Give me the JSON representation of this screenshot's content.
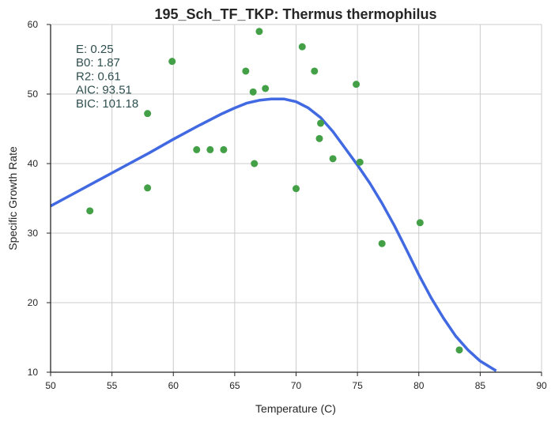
{
  "chart_data": {
    "type": "scatter",
    "title": "195_Sch_TF_TKP: Thermus thermophilus",
    "xlabel": "Temperature (C)",
    "ylabel": "Specific Growth Rate",
    "xlim": [
      50,
      90
    ],
    "ylim": [
      10,
      60
    ],
    "xticks": [
      "50",
      "55",
      "60",
      "65",
      "70",
      "75",
      "80",
      "85",
      "90"
    ],
    "yticks": [
      "10",
      "20",
      "30",
      "40",
      "50",
      "60"
    ],
    "grid": true,
    "colors": {
      "points": "#43a047",
      "curve": "#4169e1"
    },
    "points": [
      [
        53.2,
        33.2
      ],
      [
        57.9,
        47.2
      ],
      [
        57.9,
        36.5
      ],
      [
        59.9,
        54.7
      ],
      [
        61.9,
        42.0
      ],
      [
        63.0,
        42.0
      ],
      [
        64.1,
        42.0
      ],
      [
        65.9,
        53.3
      ],
      [
        66.5,
        50.3
      ],
      [
        66.6,
        40.0
      ],
      [
        67.0,
        59.0
      ],
      [
        67.5,
        50.8
      ],
      [
        70.0,
        36.4
      ],
      [
        70.5,
        56.8
      ],
      [
        71.5,
        53.3
      ],
      [
        71.9,
        43.6
      ],
      [
        72.0,
        45.8
      ],
      [
        73.0,
        40.7
      ],
      [
        74.9,
        51.4
      ],
      [
        75.2,
        40.2
      ],
      [
        77.0,
        28.5
      ],
      [
        80.1,
        31.5
      ],
      [
        83.3,
        13.2
      ]
    ],
    "fit_curve": [
      [
        50,
        33.9
      ],
      [
        52,
        35.8
      ],
      [
        54,
        37.7
      ],
      [
        56,
        39.6
      ],
      [
        58,
        41.5
      ],
      [
        60,
        43.5
      ],
      [
        62,
        45.4
      ],
      [
        64,
        47.2
      ],
      [
        65,
        48.0
      ],
      [
        66,
        48.7
      ],
      [
        67,
        49.1
      ],
      [
        68,
        49.3
      ],
      [
        69,
        49.3
      ],
      [
        70,
        48.9
      ],
      [
        71,
        48.0
      ],
      [
        72,
        46.6
      ],
      [
        73,
        44.6
      ],
      [
        74,
        42.2
      ],
      [
        75,
        39.8
      ],
      [
        76,
        37.2
      ],
      [
        77,
        34.3
      ],
      [
        78,
        31.1
      ],
      [
        79,
        27.6
      ],
      [
        80,
        24.0
      ],
      [
        81,
        20.7
      ],
      [
        82,
        17.8
      ],
      [
        83,
        15.2
      ],
      [
        84,
        13.2
      ],
      [
        85,
        11.6
      ],
      [
        86.3,
        10.2
      ]
    ],
    "stats": [
      "E:  0.25",
      "B0:  1.87",
      "R2:  0.61",
      "AIC: 93.51",
      "BIC: 101.18"
    ]
  }
}
